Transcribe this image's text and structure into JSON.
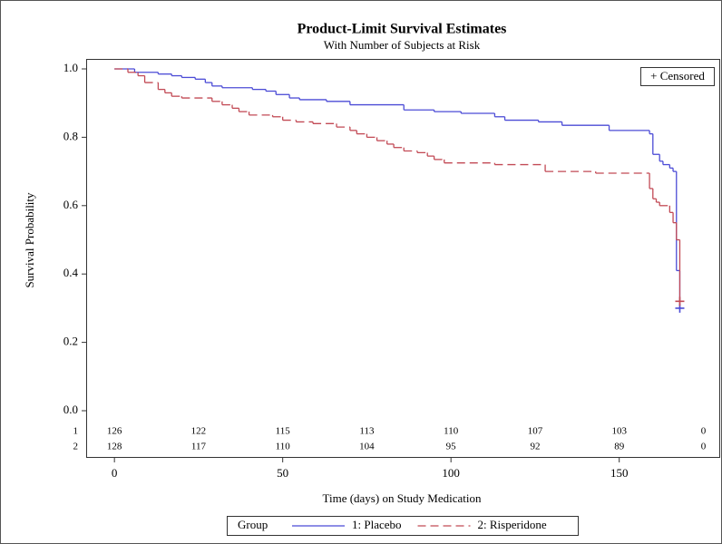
{
  "chart_data": {
    "type": "step",
    "title": "Product-Limit Survival Estimates",
    "subtitle": "With Number of Subjects at Risk",
    "x_label": "Time (days) on Study Medication",
    "y_label": "Survival Probability",
    "xlim": [
      -8.4,
      180
    ],
    "ylim": [
      0,
      1
    ],
    "xticks": [
      0,
      50,
      100,
      150
    ],
    "yticks": [
      {
        "value": 0,
        "label": "0.0"
      },
      0.2,
      0.4,
      0.6,
      0.8,
      {
        "value": 1,
        "label": "1.0"
      }
    ],
    "censored_legend": "+ Censored",
    "legend_title": "Group",
    "series": [
      {
        "name": "1: Placebo",
        "color": "#4b4bd6",
        "dashed": false,
        "x": [
          0,
          6,
          13,
          17,
          20,
          24,
          27,
          29,
          32,
          41,
          45,
          48,
          52,
          55,
          63,
          70,
          86,
          95,
          103,
          113,
          116,
          126,
          133,
          147,
          159,
          160,
          162,
          163,
          165,
          166,
          167,
          168
        ],
        "values": [
          1.0,
          0.99,
          0.985,
          0.98,
          0.975,
          0.97,
          0.96,
          0.95,
          0.945,
          0.94,
          0.935,
          0.925,
          0.915,
          0.91,
          0.905,
          0.895,
          0.88,
          0.875,
          0.87,
          0.86,
          0.85,
          0.845,
          0.835,
          0.82,
          0.81,
          0.75,
          0.73,
          0.72,
          0.71,
          0.7,
          0.41,
          0.3
        ],
        "censored_x": [
          168
        ],
        "censored_y": [
          0.3
        ]
      },
      {
        "name": "2: Risperidone",
        "color": "#c24a55",
        "dashed": true,
        "x": [
          0,
          4,
          7,
          9,
          13,
          15,
          17,
          20,
          29,
          32,
          35,
          37,
          40,
          47,
          50,
          54,
          59,
          66,
          70,
          72,
          75,
          78,
          81,
          83,
          86,
          90,
          93,
          95,
          98,
          113,
          128,
          143,
          159,
          160,
          161,
          162,
          165,
          166,
          167,
          168
        ],
        "values": [
          1.0,
          0.99,
          0.98,
          0.96,
          0.94,
          0.93,
          0.92,
          0.915,
          0.905,
          0.895,
          0.885,
          0.875,
          0.865,
          0.86,
          0.85,
          0.845,
          0.84,
          0.83,
          0.82,
          0.81,
          0.8,
          0.79,
          0.78,
          0.77,
          0.76,
          0.755,
          0.745,
          0.735,
          0.725,
          0.72,
          0.7,
          0.695,
          0.65,
          0.62,
          0.61,
          0.6,
          0.58,
          0.55,
          0.5,
          0.32
        ],
        "censored_x": [
          168
        ],
        "censored_y": [
          0.32
        ]
      }
    ],
    "at_risk": {
      "times": [
        0,
        25,
        50,
        75,
        100,
        125,
        150,
        175
      ],
      "rows": [
        {
          "label": "1",
          "values": [
            126,
            122,
            115,
            113,
            110,
            107,
            103,
            0
          ]
        },
        {
          "label": "2",
          "values": [
            128,
            117,
            110,
            104,
            95,
            92,
            89,
            0
          ]
        }
      ]
    }
  }
}
